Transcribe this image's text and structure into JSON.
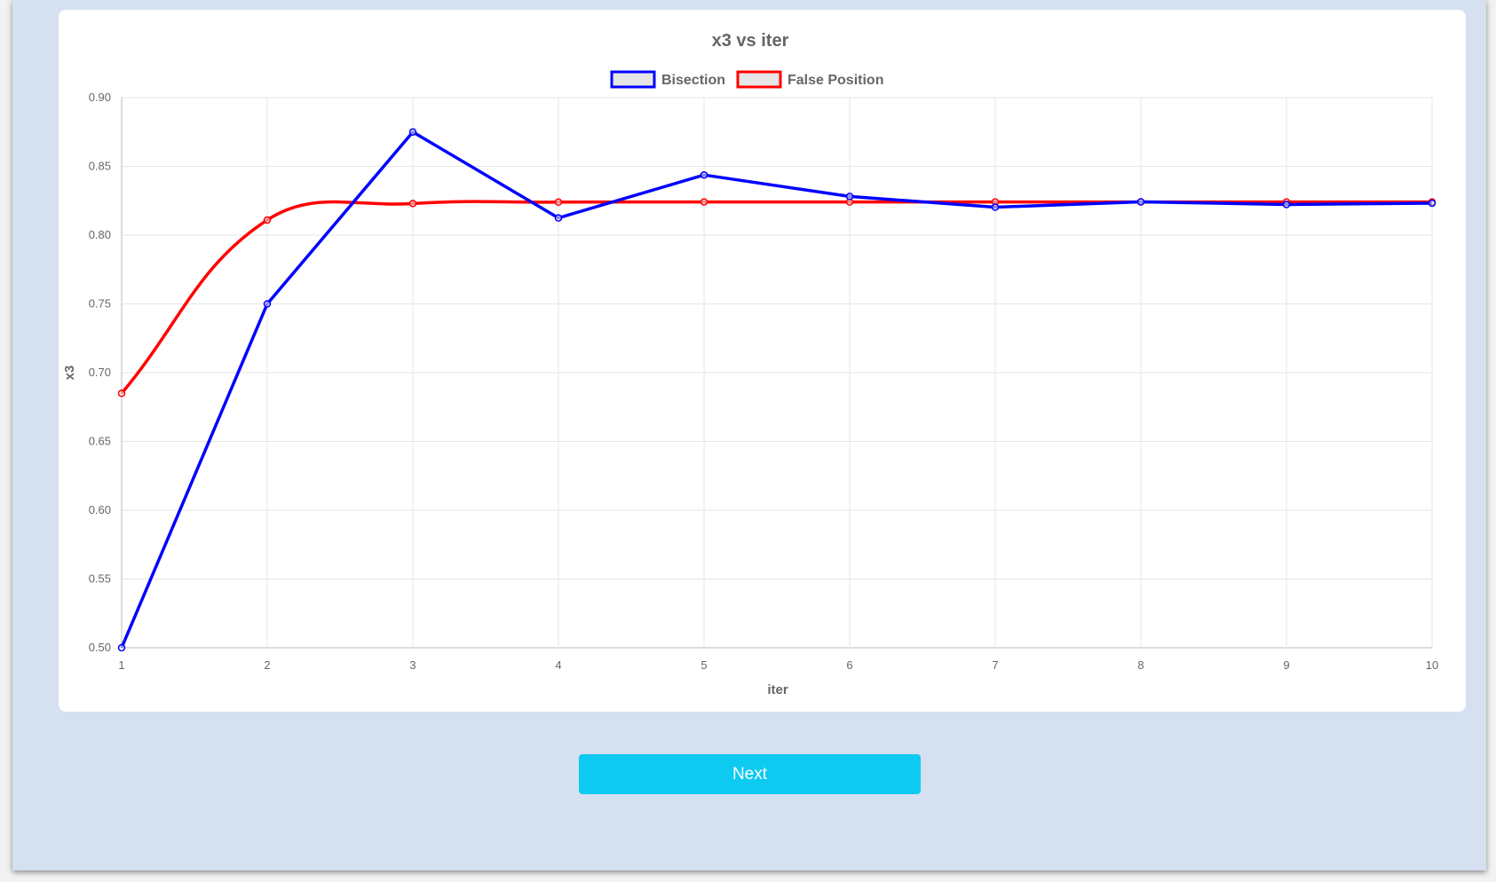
{
  "chart_data": {
    "type": "line",
    "title": "x3 vs iter",
    "xlabel": "iter",
    "ylabel": "x3",
    "x": [
      1,
      2,
      3,
      4,
      5,
      6,
      7,
      8,
      9,
      10
    ],
    "ylim": [
      0.5,
      0.9
    ],
    "yticks": [
      "0.50",
      "0.55",
      "0.60",
      "0.65",
      "0.70",
      "0.75",
      "0.80",
      "0.85",
      "0.90"
    ],
    "xticks": [
      "1",
      "2",
      "3",
      "4",
      "5",
      "6",
      "7",
      "8",
      "9",
      "10"
    ],
    "grid": true,
    "legend_position": "top",
    "series": [
      {
        "name": "Bisection",
        "color": "#0000ff",
        "smooth": false,
        "values": [
          0.5,
          0.75,
          0.875,
          0.8125,
          0.84375,
          0.828125,
          0.8203125,
          0.82421875,
          0.822265625,
          0.8232421875
        ]
      },
      {
        "name": "False Position",
        "color": "#ff0000",
        "smooth": true,
        "values": [
          0.685,
          0.811,
          0.823,
          0.824,
          0.8241,
          0.8241,
          0.8241,
          0.8241,
          0.8241,
          0.8241
        ]
      }
    ]
  },
  "button": {
    "next_label": "Next"
  }
}
